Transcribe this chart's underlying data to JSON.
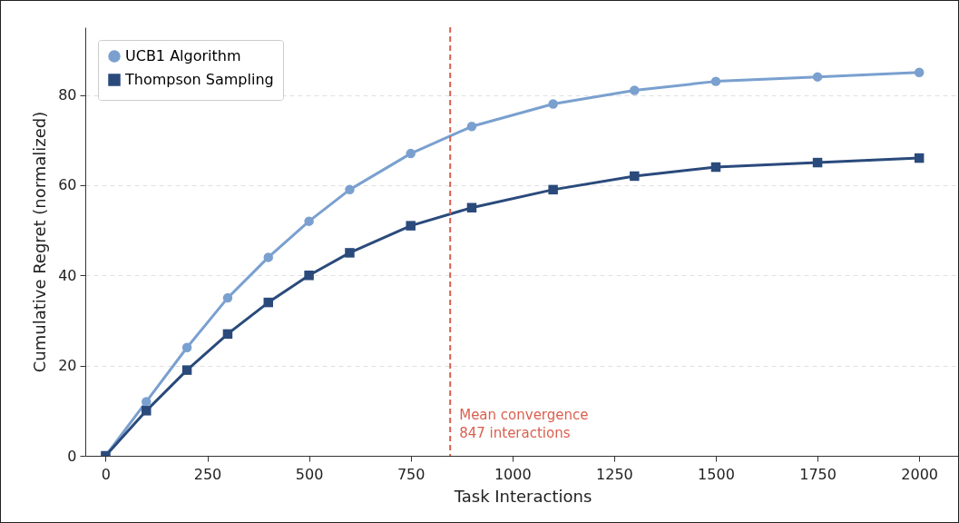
{
  "chart_data": {
    "type": "line",
    "xlabel": "Task Interactions",
    "ylabel": "Cumulative Regret (normalized)",
    "x": [
      0,
      100,
      200,
      300,
      400,
      500,
      600,
      750,
      900,
      1100,
      1300,
      1500,
      1750,
      2000
    ],
    "series": [
      {
        "name": "UCB1 Algorithm",
        "color": "#7aa0d0",
        "marker": "circle",
        "values": [
          0,
          12,
          24,
          35,
          44,
          52,
          59,
          67,
          73,
          78,
          81,
          83,
          84,
          85
        ]
      },
      {
        "name": "Thompson Sampling",
        "color": "#2a4a7c",
        "marker": "square",
        "values": [
          0,
          10,
          19,
          27,
          34,
          40,
          45,
          51,
          55,
          59,
          62,
          64,
          65,
          66
        ]
      }
    ],
    "xlim": [
      -50,
      2100
    ],
    "xticks": [
      0,
      250,
      500,
      750,
      1000,
      1250,
      1500,
      1750,
      2000
    ],
    "ylim": [
      0,
      95
    ],
    "yticks": [
      0,
      20,
      40,
      60,
      80
    ],
    "grid": "y",
    "legend": "top left",
    "line_style": "solid",
    "ref_lines": [
      {
        "axis": "x",
        "value": 847,
        "label": "Mean convergence\n847 interactions",
        "color": "#d9604f",
        "line_style": "dashed"
      }
    ]
  }
}
